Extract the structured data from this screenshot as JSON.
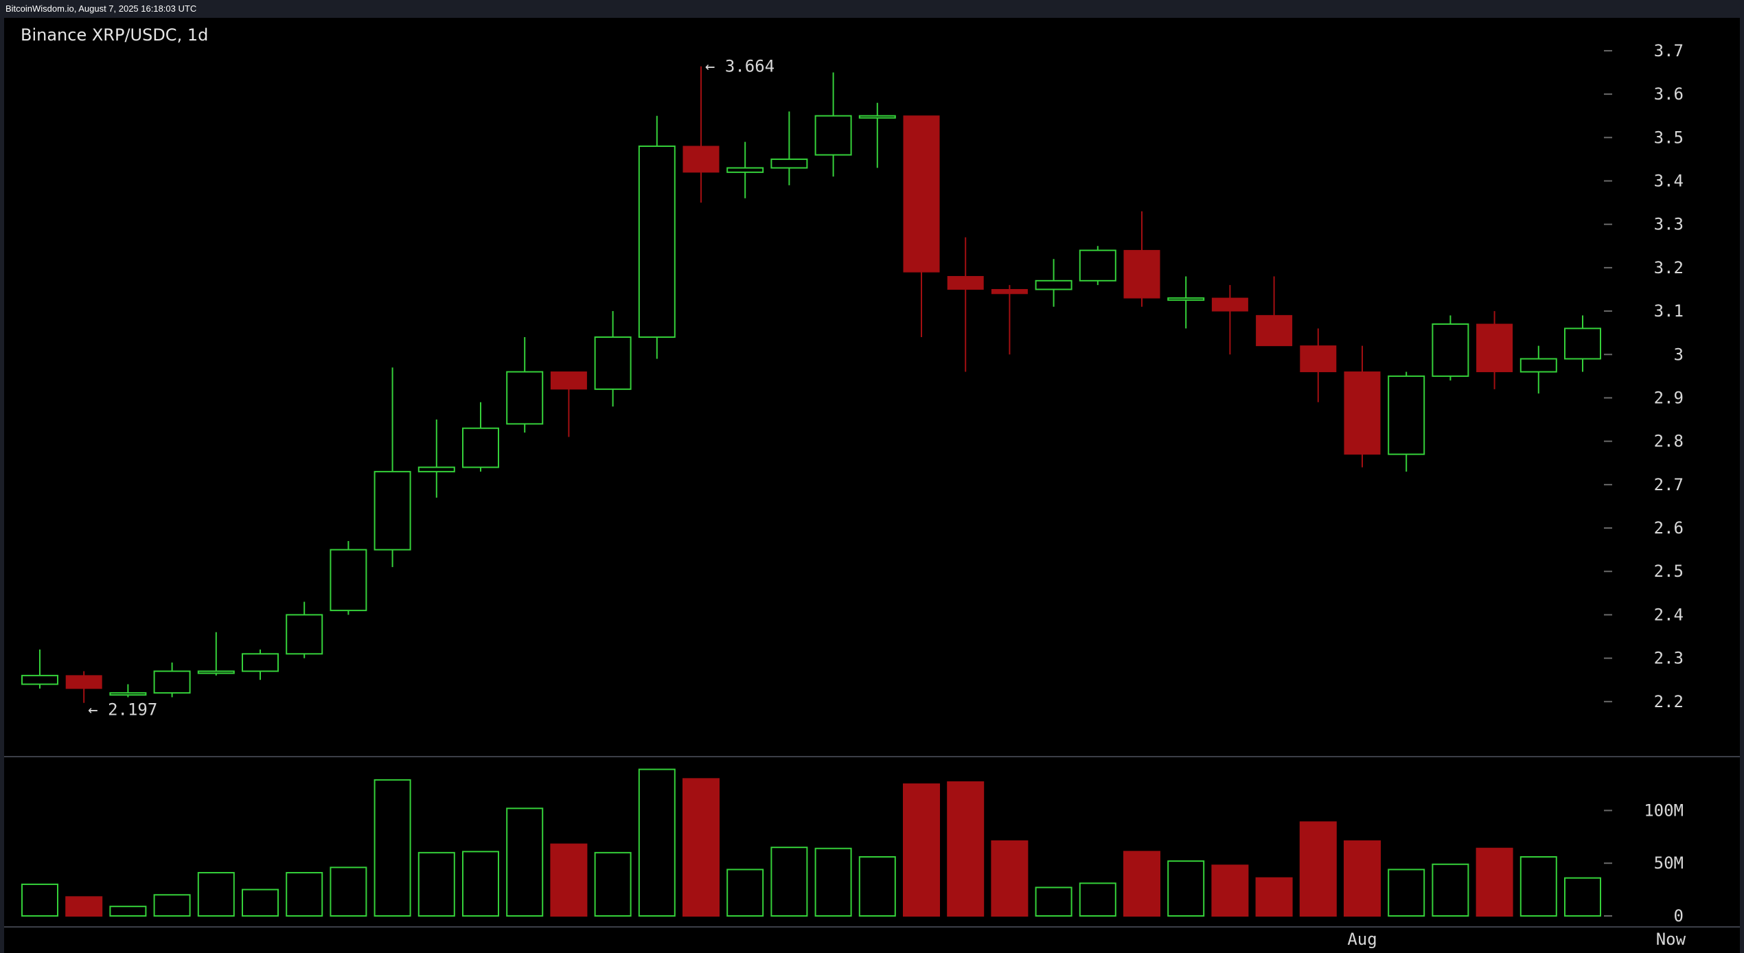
{
  "header": {
    "caption": "BitcoinWisdom.io, August 7, 2025 16:18:03 UTC"
  },
  "colors": {
    "up": "#35d13a",
    "down": "#a30f12",
    "background": "#000000",
    "frame": "#1b1e27",
    "axis_text": "#d8d8d8"
  },
  "chart_data": {
    "type": "candlestick",
    "title": "Binance XRP/USDC, 1d",
    "price_axis": {
      "ylim": [
        2.1,
        3.76
      ],
      "ticks": [
        2.2,
        2.3,
        2.4,
        2.5,
        2.6,
        2.7,
        2.8,
        2.9,
        3.0,
        3.1,
        3.2,
        3.3,
        3.4,
        3.5,
        3.6,
        3.7
      ],
      "tick_labels": [
        "2.2",
        "2.3",
        "2.4",
        "2.5",
        "2.6",
        "2.7",
        "2.8",
        "2.9",
        "3",
        "3.1",
        "3.2",
        "3.3",
        "3.4",
        "3.5",
        "3.6",
        "3.7"
      ]
    },
    "volume_axis": {
      "ylim": [
        0,
        140
      ],
      "unit": "M",
      "ticks": [
        0,
        50,
        100
      ],
      "tick_labels": [
        "0",
        "50M",
        "100M"
      ]
    },
    "x_labels": [
      {
        "label": "Aug",
        "index": 30
      },
      {
        "label": "Now",
        "index": 37
      }
    ],
    "annotations": [
      {
        "text": "← 3.664",
        "index": 15,
        "value": 3.664,
        "kind": "high"
      },
      {
        "text": "← 2.197",
        "index": 1,
        "value": 2.197,
        "kind": "low"
      }
    ],
    "candles": [
      {
        "open": 2.24,
        "high": 2.32,
        "low": 2.23,
        "close": 2.26,
        "volume": 30
      },
      {
        "open": 2.26,
        "high": 2.27,
        "low": 2.197,
        "close": 2.23,
        "volume": 18
      },
      {
        "open": 2.22,
        "high": 2.24,
        "low": 2.21,
        "close": 2.22,
        "volume": 9
      },
      {
        "open": 2.22,
        "high": 2.29,
        "low": 2.21,
        "close": 2.27,
        "volume": 20
      },
      {
        "open": 2.27,
        "high": 2.36,
        "low": 2.26,
        "close": 2.27,
        "volume": 41
      },
      {
        "open": 2.27,
        "high": 2.32,
        "low": 2.25,
        "close": 2.31,
        "volume": 25
      },
      {
        "open": 2.31,
        "high": 2.43,
        "low": 2.3,
        "close": 2.4,
        "volume": 41
      },
      {
        "open": 2.41,
        "high": 2.57,
        "low": 2.4,
        "close": 2.55,
        "volume": 46
      },
      {
        "open": 2.55,
        "high": 2.97,
        "low": 2.51,
        "close": 2.73,
        "volume": 129
      },
      {
        "open": 2.73,
        "high": 2.85,
        "low": 2.67,
        "close": 2.74,
        "volume": 60
      },
      {
        "open": 2.74,
        "high": 2.89,
        "low": 2.73,
        "close": 2.83,
        "volume": 61
      },
      {
        "open": 2.84,
        "high": 3.04,
        "low": 2.82,
        "close": 2.96,
        "volume": 102
      },
      {
        "open": 2.96,
        "high": 2.96,
        "low": 2.81,
        "close": 2.92,
        "volume": 68
      },
      {
        "open": 2.92,
        "high": 3.1,
        "low": 2.88,
        "close": 3.04,
        "volume": 60
      },
      {
        "open": 3.04,
        "high": 3.55,
        "low": 2.99,
        "close": 3.48,
        "volume": 139
      },
      {
        "open": 3.48,
        "high": 3.664,
        "low": 3.35,
        "close": 3.42,
        "volume": 130
      },
      {
        "open": 3.42,
        "high": 3.49,
        "low": 3.36,
        "close": 3.43,
        "volume": 44
      },
      {
        "open": 3.43,
        "high": 3.56,
        "low": 3.39,
        "close": 3.45,
        "volume": 65
      },
      {
        "open": 3.46,
        "high": 3.65,
        "low": 3.41,
        "close": 3.55,
        "volume": 64
      },
      {
        "open": 3.55,
        "high": 3.58,
        "low": 3.43,
        "close": 3.55,
        "volume": 56
      },
      {
        "open": 3.55,
        "high": 3.55,
        "low": 3.04,
        "close": 3.19,
        "volume": 125
      },
      {
        "open": 3.18,
        "high": 3.27,
        "low": 2.96,
        "close": 3.15,
        "volume": 127
      },
      {
        "open": 3.15,
        "high": 3.16,
        "low": 3.0,
        "close": 3.14,
        "volume": 71
      },
      {
        "open": 3.15,
        "high": 3.22,
        "low": 3.11,
        "close": 3.17,
        "volume": 27
      },
      {
        "open": 3.17,
        "high": 3.25,
        "low": 3.16,
        "close": 3.24,
        "volume": 31
      },
      {
        "open": 3.24,
        "high": 3.33,
        "low": 3.11,
        "close": 3.13,
        "volume": 61
      },
      {
        "open": 3.13,
        "high": 3.18,
        "low": 3.06,
        "close": 3.13,
        "volume": 52
      },
      {
        "open": 3.13,
        "high": 3.16,
        "low": 3.0,
        "close": 3.1,
        "volume": 48
      },
      {
        "open": 3.09,
        "high": 3.18,
        "low": 3.02,
        "close": 3.02,
        "volume": 36
      },
      {
        "open": 3.02,
        "high": 3.06,
        "low": 2.89,
        "close": 2.96,
        "volume": 89
      },
      {
        "open": 2.96,
        "high": 3.02,
        "low": 2.74,
        "close": 2.77,
        "volume": 71
      },
      {
        "open": 2.77,
        "high": 2.96,
        "low": 2.73,
        "close": 2.95,
        "volume": 44
      },
      {
        "open": 2.95,
        "high": 3.09,
        "low": 2.94,
        "close": 3.07,
        "volume": 49
      },
      {
        "open": 3.07,
        "high": 3.1,
        "low": 2.92,
        "close": 2.96,
        "volume": 64
      },
      {
        "open": 2.96,
        "high": 3.02,
        "low": 2.91,
        "close": 2.99,
        "volume": 56
      },
      {
        "open": 2.99,
        "high": 3.09,
        "low": 2.96,
        "close": 3.06,
        "volume": 36
      }
    ]
  }
}
